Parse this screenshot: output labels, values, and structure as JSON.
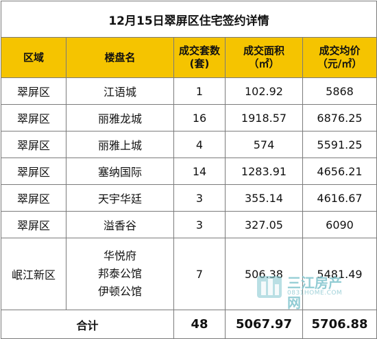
{
  "title": "12月15日翠屏区住宅签约详情",
  "headers": {
    "region": "区域",
    "project": "楼盘名",
    "units_line1": "成交套数",
    "units_line2": "(套)",
    "area_line1": "成交面积",
    "area_line2": "（㎡）",
    "price_line1": "成交均价",
    "price_line2": "（元/㎡）"
  },
  "rows": [
    {
      "region": "翠屏区",
      "projects": [
        "江语城"
      ],
      "units": "1",
      "area": "102.92",
      "price": "5868"
    },
    {
      "region": "翠屏区",
      "projects": [
        "丽雅龙城"
      ],
      "units": "16",
      "area": "1918.57",
      "price": "6876.25"
    },
    {
      "region": "翠屏区",
      "projects": [
        "丽雅上城"
      ],
      "units": "4",
      "area": "574",
      "price": "5591.25"
    },
    {
      "region": "翠屏区",
      "projects": [
        "塞纳国际"
      ],
      "units": "14",
      "area": "1283.91",
      "price": "4656.21"
    },
    {
      "region": "翠屏区",
      "projects": [
        "天宇华廷"
      ],
      "units": "3",
      "area": "355.14",
      "price": "4616.67"
    },
    {
      "region": "翠屏区",
      "projects": [
        "溢香谷"
      ],
      "units": "3",
      "area": "327.05",
      "price": "6090"
    },
    {
      "region": "岷江新区",
      "projects": [
        "华悦府",
        "邦泰公馆",
        "伊顿公馆"
      ],
      "units": "7",
      "area": "506.38",
      "price": "5481.49"
    }
  ],
  "total": {
    "label": "合计",
    "units": "48",
    "area": "5067.97",
    "price": "5706.88"
  },
  "watermark": {
    "brand": "三江房产网",
    "site": "0831HOME.COM",
    "color": "#7fc4cd"
  }
}
